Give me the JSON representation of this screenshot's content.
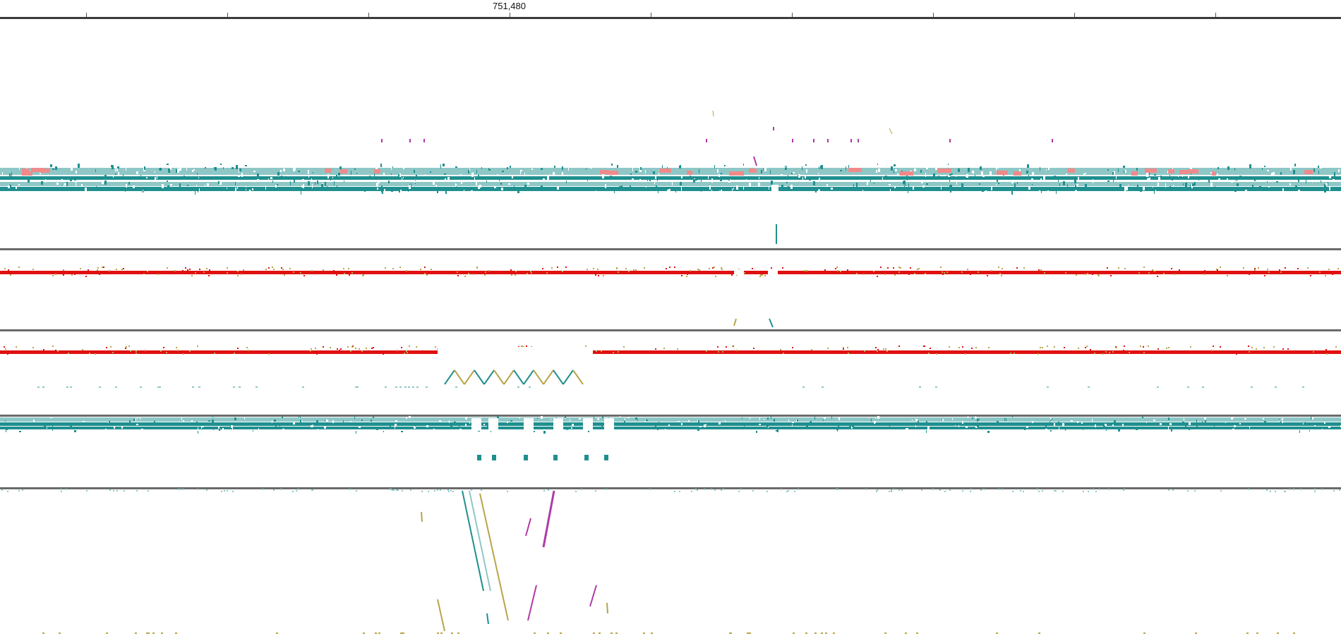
{
  "ruler": {
    "position_label": "751,480"
  },
  "colors": {
    "read_teal": "#1f8f8f",
    "read_light": "#8fc7c7",
    "mismatch_pink": "#f08a8a",
    "contig_red": "#e01010",
    "separator_gray": "#6a6a6a",
    "snp_olive": "#b8a548",
    "snp_magenta": "#b03aa8"
  },
  "panels": [
    {
      "name": "alignment-panel-1"
    },
    {
      "name": "alignment-panel-2"
    },
    {
      "name": "alignment-panel-3"
    },
    {
      "name": "alignment-panel-4"
    },
    {
      "name": "alignment-panel-5"
    }
  ]
}
